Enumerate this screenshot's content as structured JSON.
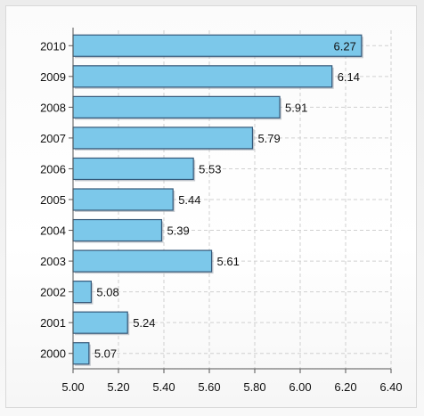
{
  "chart_data": {
    "type": "bar",
    "orientation": "horizontal",
    "categories": [
      "2010",
      "2009",
      "2008",
      "2007",
      "2006",
      "2005",
      "2004",
      "2003",
      "2002",
      "2001",
      "2000"
    ],
    "values": [
      6.27,
      6.14,
      5.91,
      5.79,
      5.53,
      5.44,
      5.39,
      5.61,
      5.08,
      5.24,
      5.07
    ],
    "value_labels": [
      "6.27",
      "6.14",
      "5.91",
      "5.79",
      "5.53",
      "5.44",
      "5.39",
      "5.61",
      "5.08",
      "5.24",
      "5.07"
    ],
    "x_ticks": [
      "5.00",
      "5.20",
      "5.40",
      "5.60",
      "5.80",
      "6.00",
      "6.20",
      "6.40"
    ],
    "xlim": [
      5.0,
      6.4
    ],
    "title": "",
    "xlabel": "",
    "ylabel": "",
    "grid": true,
    "legend": "none",
    "colors": {
      "bar_fill": "#7cc8ea",
      "bar_stroke": "#35597a",
      "grid": "#d0d0d0",
      "axis": "#555555"
    }
  }
}
